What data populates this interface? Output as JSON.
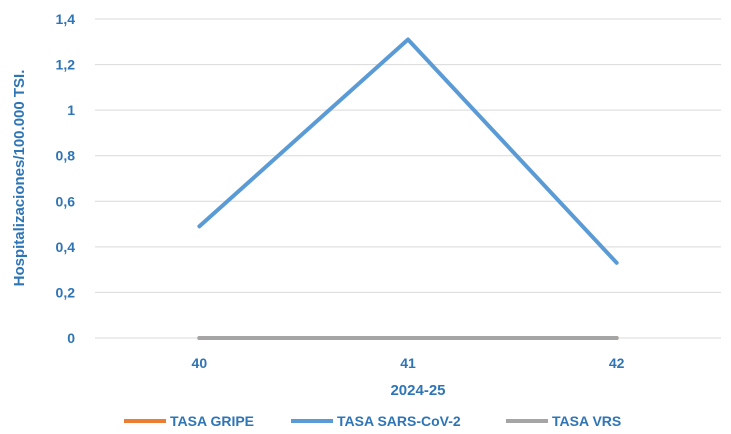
{
  "chart_data": {
    "type": "line",
    "categories": [
      "40",
      "41",
      "42"
    ],
    "series": [
      {
        "name": "TASA GRIPE",
        "color": "#ED7D31",
        "values": [
          0,
          0,
          0
        ]
      },
      {
        "name": "TASA SARS-CoV-2",
        "color": "#5B9BD5",
        "values": [
          0.49,
          1.31,
          0.33
        ]
      },
      {
        "name": "TASA VRS",
        "color": "#A5A5A5",
        "values": [
          0,
          0,
          0
        ]
      }
    ],
    "y_ticks": [
      "0",
      "0,2",
      "0,4",
      "0,6",
      "0,8",
      "1",
      "1,2",
      "1,4"
    ],
    "ylim": [
      0,
      1.4
    ],
    "xlabel": "2024-25",
    "ylabel": "Hospitalizaciones/100.000 TSI.",
    "grid": "horizontal",
    "legend_position": "bottom",
    "text_color": "#2E75B6",
    "grid_color": "#D9D9D9"
  }
}
